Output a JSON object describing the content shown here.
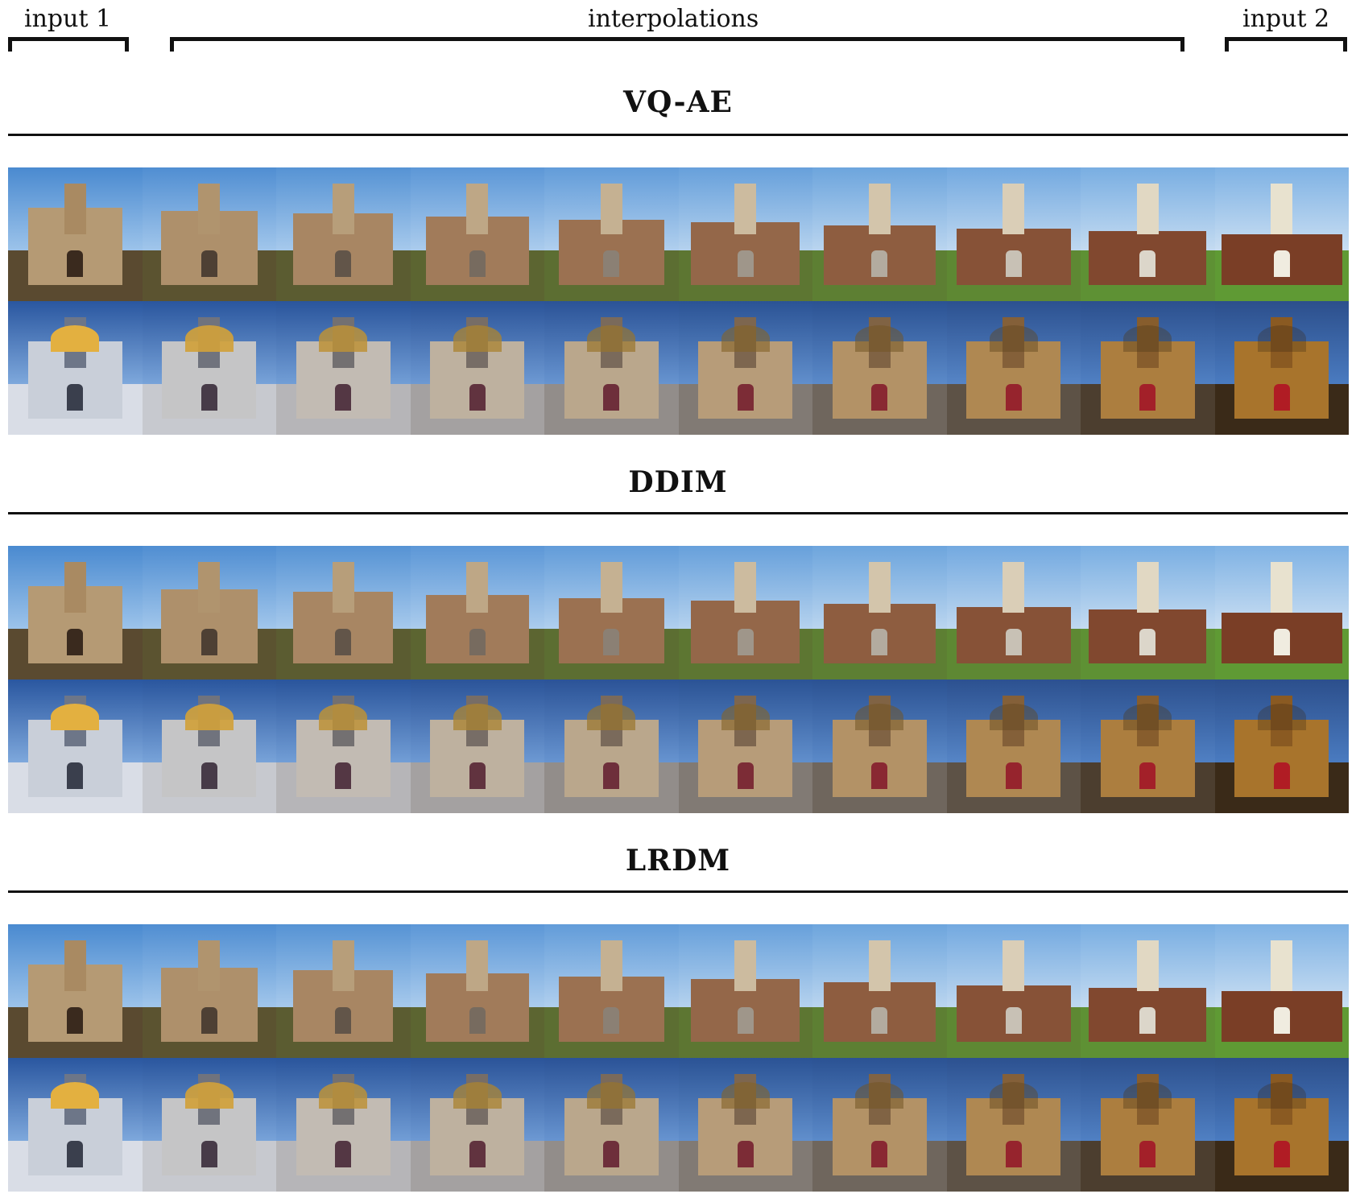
{
  "header": {
    "input1": "input 1",
    "interpolations": "interpolations",
    "input2": "input 2"
  },
  "sections": [
    {
      "title": "VQ-AE"
    },
    {
      "title": "DDIM"
    },
    {
      "title": "LRDM"
    }
  ],
  "palette": {
    "sky_blue": "#5f95d0",
    "deep_blue": "#2d5fa6",
    "grass": "#6f9a3c",
    "stone": "#b59a74",
    "brick": "#6b3b24",
    "golden": "#c8923a",
    "red_banner": "#b01c24"
  }
}
